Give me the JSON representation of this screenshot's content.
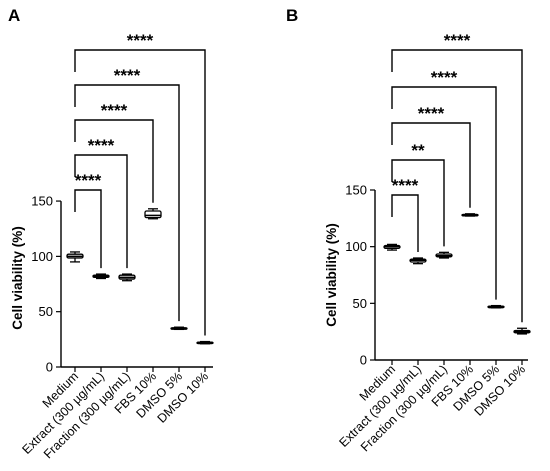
{
  "chart_data": [
    {
      "type": "box",
      "panel_label": "A",
      "ylabel": "Cell viability (%)",
      "ylim": [
        0,
        160
      ],
      "yticks": [
        0,
        50,
        100,
        150
      ],
      "categories": [
        "Medium",
        "Extract (300 µg/mL)",
        "Fraction (300 µg/mL)",
        "FBS 10%",
        "DMSO 5%",
        "DMSO 10%"
      ],
      "boxes": [
        {
          "min": 95,
          "q1": 98.5,
          "median": 100,
          "q3": 102,
          "max": 104
        },
        {
          "min": 80,
          "q1": 81,
          "median": 82,
          "q3": 83,
          "max": 84
        },
        {
          "min": 78,
          "q1": 79.5,
          "median": 81,
          "q3": 83,
          "max": 84
        },
        {
          "min": 134,
          "q1": 135,
          "median": 137,
          "q3": 141,
          "max": 143
        },
        {
          "min": 34,
          "q1": 34.5,
          "median": 35,
          "q3": 35.5,
          "max": 36
        },
        {
          "min": 21,
          "q1": 21.5,
          "median": 22,
          "q3": 22.5,
          "max": 23
        }
      ],
      "comparisons": [
        {
          "from": 0,
          "to": 1,
          "label": "****"
        },
        {
          "from": 0,
          "to": 2,
          "label": "****"
        },
        {
          "from": 0,
          "to": 3,
          "label": "****"
        },
        {
          "from": 0,
          "to": 4,
          "label": "****"
        },
        {
          "from": 0,
          "to": 5,
          "label": "****"
        }
      ]
    },
    {
      "type": "box",
      "panel_label": "B",
      "ylabel": "Cell viability (%)",
      "ylim": [
        0,
        150
      ],
      "yticks": [
        0,
        50,
        100,
        150
      ],
      "categories": [
        "Medium",
        "Extract (300 µg/mL)",
        "Fraction (300 µg/mL)",
        "FBS 10%",
        "DMSO 5%",
        "DMSO 10%"
      ],
      "boxes": [
        {
          "min": 97,
          "q1": 98.5,
          "median": 100,
          "q3": 101,
          "max": 102
        },
        {
          "min": 85,
          "q1": 86.5,
          "median": 88,
          "q3": 89,
          "max": 90
        },
        {
          "min": 90,
          "q1": 91,
          "median": 92,
          "q3": 93.5,
          "max": 95
        },
        {
          "min": 127,
          "q1": 127.5,
          "median": 128,
          "q3": 128.5,
          "max": 129
        },
        {
          "min": 46,
          "q1": 46.5,
          "median": 47,
          "q3": 47.5,
          "max": 48
        },
        {
          "min": 23,
          "q1": 24,
          "median": 25,
          "q3": 26,
          "max": 28
        }
      ],
      "comparisons": [
        {
          "from": 0,
          "to": 1,
          "label": "****"
        },
        {
          "from": 0,
          "to": 2,
          "label": "**"
        },
        {
          "from": 0,
          "to": 3,
          "label": "****"
        },
        {
          "from": 0,
          "to": 4,
          "label": "****"
        },
        {
          "from": 0,
          "to": 5,
          "label": "****"
        }
      ]
    }
  ]
}
